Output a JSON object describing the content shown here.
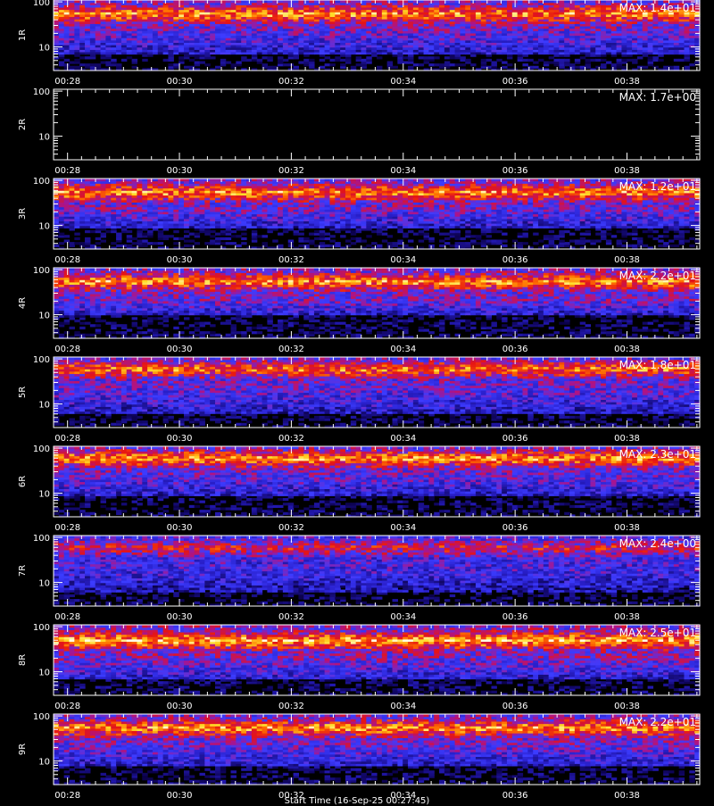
{
  "figure": {
    "footer": "Start Time (16-Sep-25 00:27:45)"
  },
  "chart_data": [
    {
      "type": "heatmap",
      "panel_label": "1R",
      "max_label": "MAX: 1.4e+01",
      "max_value": 14.0,
      "y_scale": "log",
      "ylim": [
        3,
        110
      ],
      "y_ticks": [
        "10",
        "100"
      ],
      "x_ticks": [
        "00:28",
        "00:30",
        "00:32",
        "00:34",
        "00:36",
        "00:38"
      ],
      "profile": {
        "hot_low": 28,
        "hot_high": 95,
        "hot_peak": 55,
        "blue_low": 7,
        "intensity": 0.95
      }
    },
    {
      "type": "heatmap",
      "panel_label": "2R",
      "max_label": "MAX: 1.7e+00",
      "max_value": 1.7,
      "y_scale": "log",
      "ylim": [
        3,
        110
      ],
      "y_ticks": [
        "10",
        "100"
      ],
      "x_ticks": [
        "00:28",
        "00:30",
        "00:32",
        "00:34",
        "00:36",
        "00:38"
      ],
      "profile": {
        "hot_low": 0,
        "hot_high": 0,
        "hot_peak": 0,
        "blue_low": 0,
        "intensity": 0.0
      }
    },
    {
      "type": "heatmap",
      "panel_label": "3R",
      "max_label": "MAX: 1.2e+01",
      "max_value": 12.0,
      "y_scale": "log",
      "ylim": [
        3,
        110
      ],
      "y_ticks": [
        "10",
        "100"
      ],
      "x_ticks": [
        "00:28",
        "00:30",
        "00:32",
        "00:34",
        "00:36",
        "00:38"
      ],
      "profile": {
        "hot_low": 25,
        "hot_high": 95,
        "hot_peak": 55,
        "blue_low": 9,
        "intensity": 0.95
      }
    },
    {
      "type": "heatmap",
      "panel_label": "4R",
      "max_label": "MAX: 2.2e+01",
      "max_value": 22.0,
      "y_scale": "log",
      "ylim": [
        3,
        110
      ],
      "y_ticks": [
        "10",
        "100"
      ],
      "x_ticks": [
        "00:28",
        "00:30",
        "00:32",
        "00:34",
        "00:36",
        "00:38"
      ],
      "profile": {
        "hot_low": 22,
        "hot_high": 95,
        "hot_peak": 55,
        "blue_low": 10,
        "intensity": 0.95
      }
    },
    {
      "type": "heatmap",
      "panel_label": "5R",
      "max_label": "MAX: 1.8e+01",
      "max_value": 18.0,
      "y_scale": "log",
      "ylim": [
        3,
        110
      ],
      "y_ticks": [
        "10",
        "100"
      ],
      "x_ticks": [
        "00:28",
        "00:30",
        "00:32",
        "00:34",
        "00:36",
        "00:38"
      ],
      "profile": {
        "hot_low": 25,
        "hot_high": 95,
        "hot_peak": 60,
        "blue_low": 6,
        "intensity": 0.9
      }
    },
    {
      "type": "heatmap",
      "panel_label": "6R",
      "max_label": "MAX: 2.3e+01",
      "max_value": 23.0,
      "y_scale": "log",
      "ylim": [
        3,
        110
      ],
      "y_ticks": [
        "10",
        "100"
      ],
      "x_ticks": [
        "00:28",
        "00:30",
        "00:32",
        "00:34",
        "00:36",
        "00:38"
      ],
      "profile": {
        "hot_low": 30,
        "hot_high": 95,
        "hot_peak": 60,
        "blue_low": 9,
        "intensity": 0.95
      }
    },
    {
      "type": "heatmap",
      "panel_label": "7R",
      "max_label": "MAX: 2.4e+00",
      "max_value": 2.4,
      "y_scale": "log",
      "ylim": [
        3,
        110
      ],
      "y_ticks": [
        "10",
        "100"
      ],
      "x_ticks": [
        "00:28",
        "00:30",
        "00:32",
        "00:34",
        "00:36",
        "00:38"
      ],
      "profile": {
        "hot_low": 20,
        "hot_high": 95,
        "hot_peak": 60,
        "blue_low": 6,
        "intensity": 0.75
      }
    },
    {
      "type": "heatmap",
      "panel_label": "8R",
      "max_label": "MAX: 2.5e+01",
      "max_value": 25.0,
      "y_scale": "log",
      "ylim": [
        3,
        110
      ],
      "y_ticks": [
        "10",
        "100"
      ],
      "x_ticks": [
        "00:28",
        "00:30",
        "00:32",
        "00:34",
        "00:36",
        "00:38"
      ],
      "profile": {
        "hot_low": 22,
        "hot_high": 95,
        "hot_peak": 50,
        "blue_low": 7,
        "intensity": 1.0
      }
    },
    {
      "type": "heatmap",
      "panel_label": "9R",
      "max_label": "MAX: 2.2e+01",
      "max_value": 22.0,
      "y_scale": "log",
      "ylim": [
        3,
        110
      ],
      "y_ticks": [
        "10",
        "100"
      ],
      "x_ticks": [
        "00:28",
        "00:30",
        "00:32",
        "00:34",
        "00:36",
        "00:38"
      ],
      "profile": {
        "hot_low": 25,
        "hot_high": 95,
        "hot_peak": 55,
        "blue_low": 8,
        "intensity": 0.95
      }
    }
  ]
}
